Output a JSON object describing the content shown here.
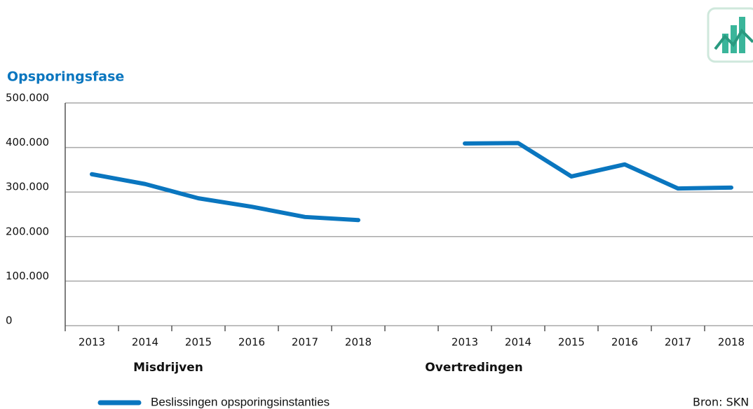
{
  "chart_data": {
    "type": "line",
    "title": "Opsporingsfase",
    "categories": [
      "2013",
      "2014",
      "2015",
      "2016",
      "2017",
      "2018",
      null,
      "2013",
      "2014",
      "2015",
      "2016",
      "2017",
      "2018"
    ],
    "group_labels": [
      "Misdrijven",
      "Overtredingen"
    ],
    "series": [
      {
        "name": "Beslissingen opsporingsinstanties",
        "color": "#0a76bf",
        "values": [
          340000,
          318000,
          286000,
          267000,
          244000,
          237000,
          null,
          409000,
          410000,
          335000,
          362000,
          308000,
          310000
        ]
      }
    ],
    "ylim": [
      0,
      500000
    ],
    "yticks": [
      0,
      {
        "value": 100000,
        "label": "100.000"
      },
      {
        "value": 200000,
        "label": "200.000"
      },
      {
        "value": 300000,
        "label": "300.000"
      },
      {
        "value": 400000,
        "label": "400.000"
      },
      {
        "value": 500000,
        "label": "500.000"
      }
    ],
    "grid": true,
    "source": "Bron: SKN"
  }
}
